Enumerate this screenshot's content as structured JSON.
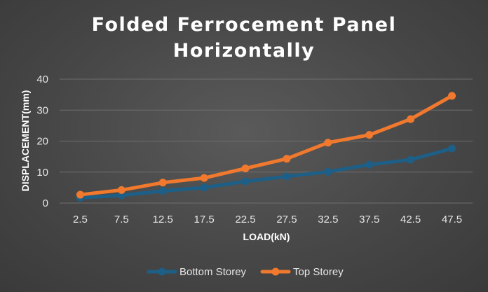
{
  "chart_data": {
    "type": "line",
    "title": [
      "Folded Ferrocement Panel",
      "Horizontally"
    ],
    "xlabel": "LOAD(kN)",
    "ylabel": "DISPLACEMENT(mm)",
    "categories": [
      "2.5",
      "7.5",
      "12.5",
      "17.5",
      "22.5",
      "27.5",
      "32.5",
      "37.5",
      "42.5",
      "47.5"
    ],
    "ylim": [
      0,
      40
    ],
    "yticks": [
      0,
      10,
      20,
      30,
      40
    ],
    "grid": true,
    "legend": "bottom",
    "series": [
      {
        "name": "Bottom Storey",
        "color": "#1d5f86",
        "values": [
          1.7,
          2.5,
          3.9,
          5.0,
          7.0,
          8.6,
          10.1,
          12.4,
          14.0,
          17.6
        ]
      },
      {
        "name": "Top Storey",
        "color": "#f0792e",
        "values": [
          2.7,
          4.2,
          6.6,
          8.1,
          11.2,
          14.3,
          19.5,
          22.0,
          27.1,
          34.6
        ]
      }
    ]
  }
}
